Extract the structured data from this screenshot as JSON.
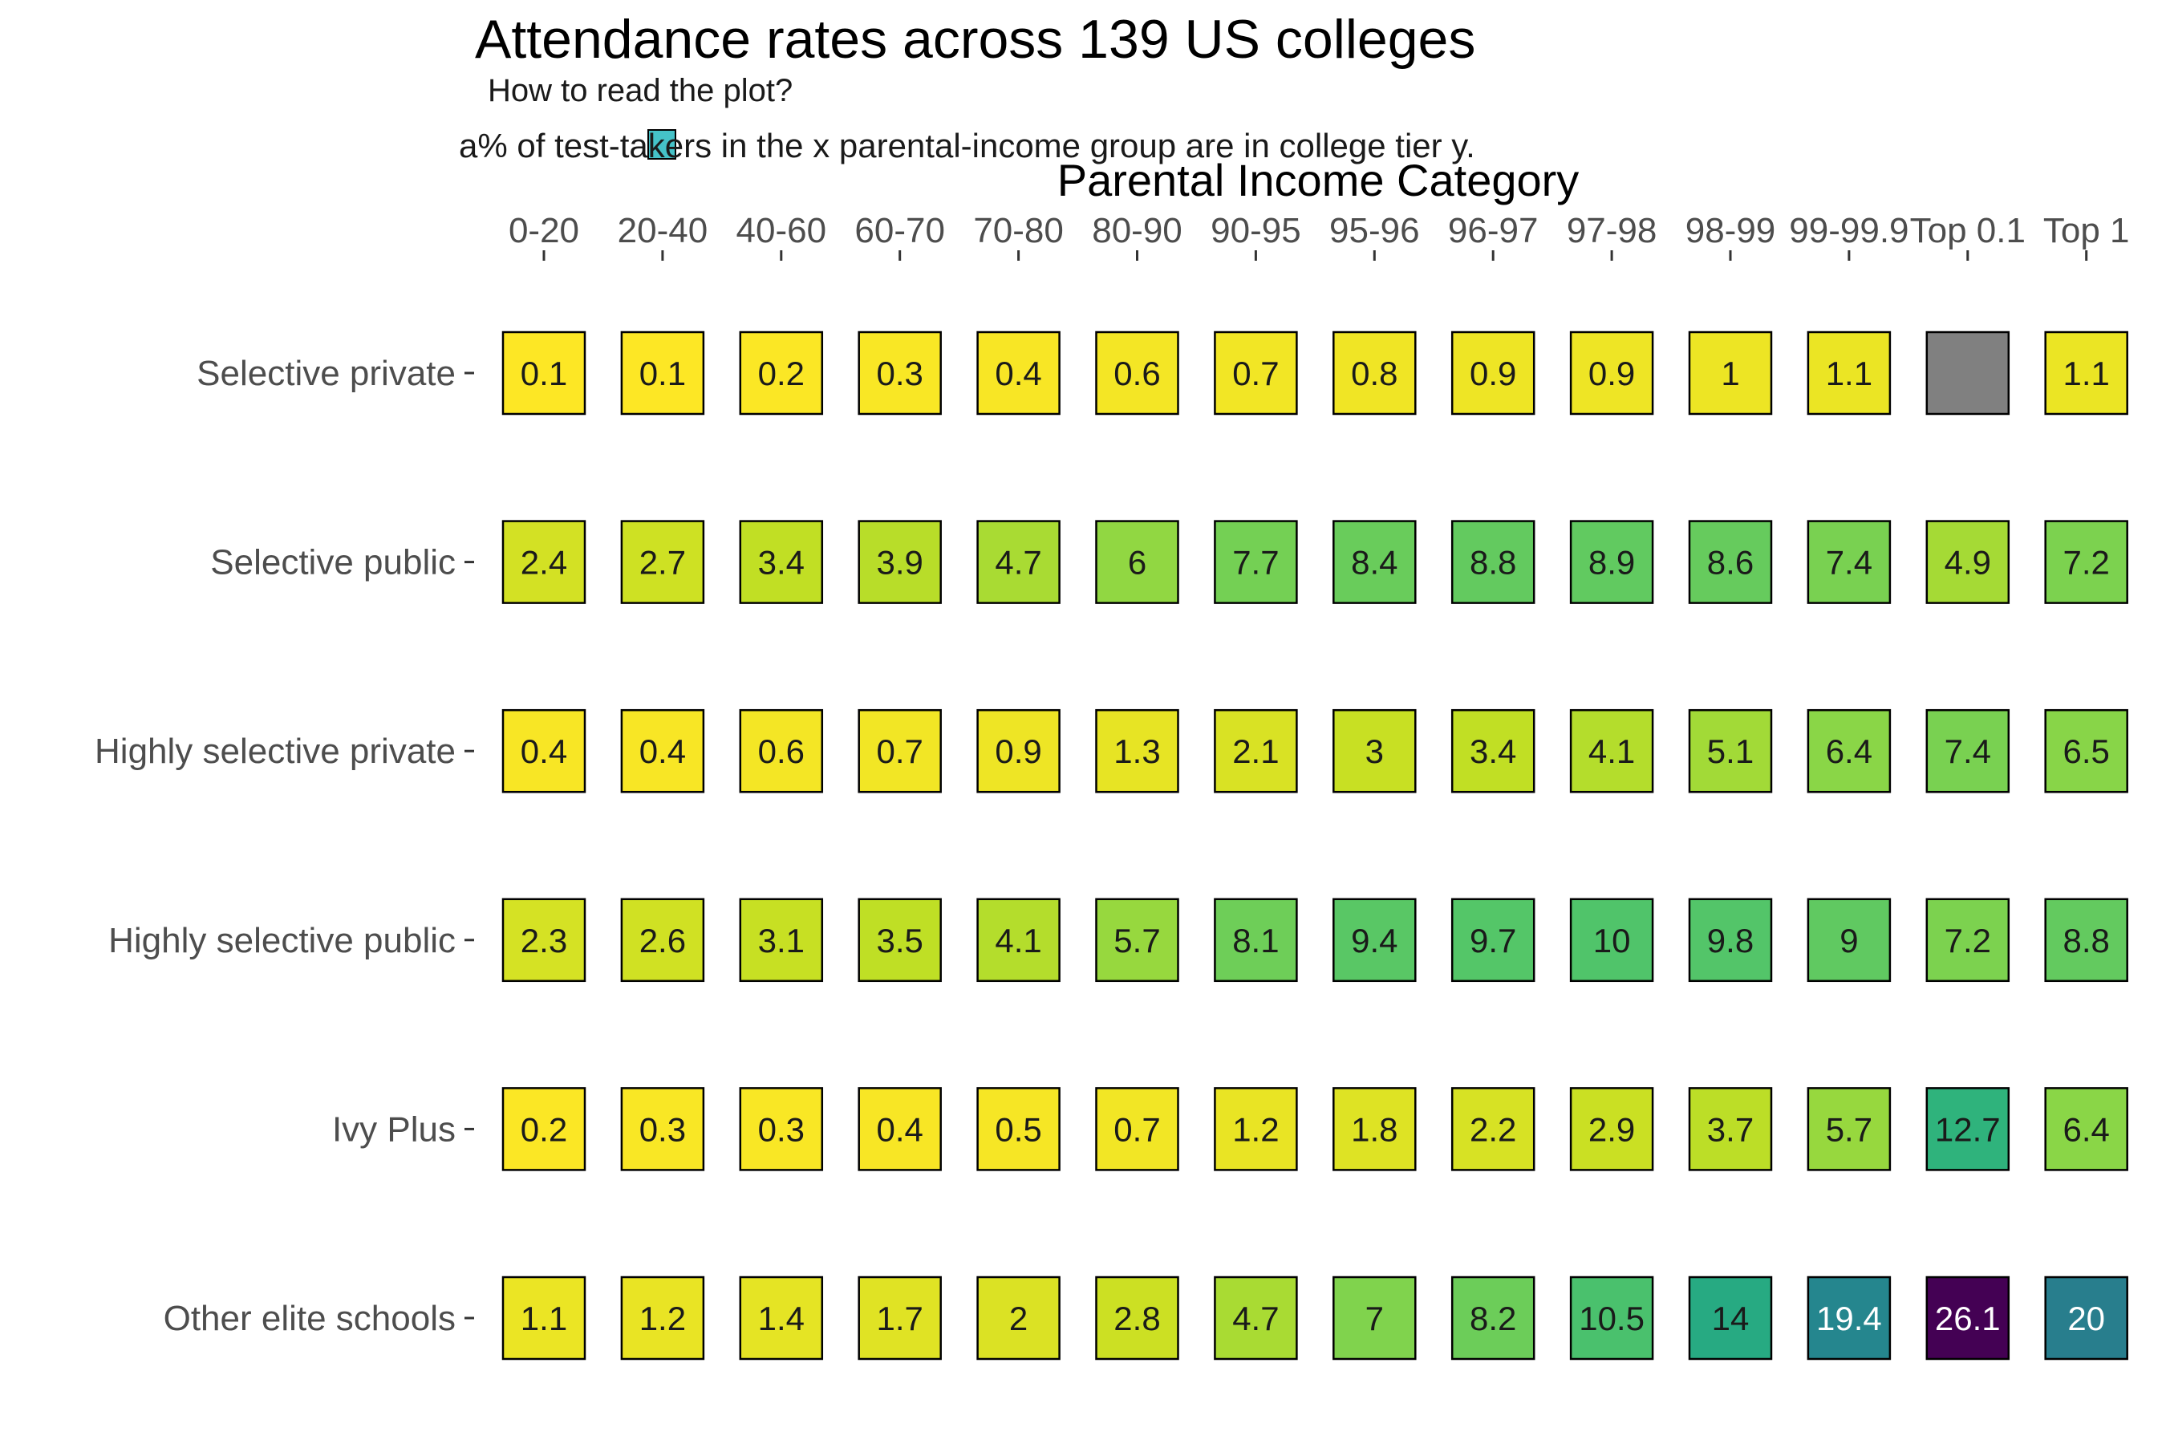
{
  "chart_data": {
    "type": "heatmap",
    "title": "Attendance rates across 139 US colleges",
    "subtitle": "How to read the plot?",
    "caption": "a% of test-takers in the x parental-income group are in college tier y.",
    "xlabel": "Parental Income Category",
    "ylabel": "",
    "x_axis_position": "top",
    "color_scale": "viridis (reversed)",
    "missing_color": "#808080",
    "legend_key_color": "#45C2C8",
    "x_categories": [
      "0-20",
      "20-40",
      "40-60",
      "60-70",
      "70-80",
      "80-90",
      "90-95",
      "95-96",
      "96-97",
      "97-98",
      "98-99",
      "99-99.9",
      "Top 0.1",
      "Top 1"
    ],
    "y_categories": [
      "Selective private",
      "Selective public",
      "Highly selective private",
      "Highly selective public",
      "Ivy Plus",
      "Other elite schools"
    ],
    "values": [
      [
        0.1,
        0.1,
        0.2,
        0.3,
        0.4,
        0.6,
        0.7,
        0.8,
        0.9,
        0.9,
        1,
        1.1,
        null,
        1.1
      ],
      [
        2.4,
        2.7,
        3.4,
        3.9,
        4.7,
        6,
        7.7,
        8.4,
        8.8,
        8.9,
        8.6,
        7.4,
        4.9,
        7.2
      ],
      [
        0.4,
        0.4,
        0.6,
        0.7,
        0.9,
        1.3,
        2.1,
        3,
        3.4,
        4.1,
        5.1,
        6.4,
        7.4,
        6.5
      ],
      [
        2.3,
        2.6,
        3.1,
        3.5,
        4.1,
        5.7,
        8.1,
        9.4,
        9.7,
        10,
        9.8,
        9,
        7.2,
        8.8
      ],
      [
        0.2,
        0.3,
        0.3,
        0.4,
        0.5,
        0.7,
        1.2,
        1.8,
        2.2,
        2.9,
        3.7,
        5.7,
        12.7,
        6.4
      ],
      [
        1.1,
        1.2,
        1.4,
        1.7,
        2,
        2.8,
        4.7,
        7,
        8.2,
        10.5,
        14,
        19.4,
        26.1,
        20
      ]
    ],
    "value_range": [
      0.1,
      26.1
    ],
    "grid": false
  }
}
